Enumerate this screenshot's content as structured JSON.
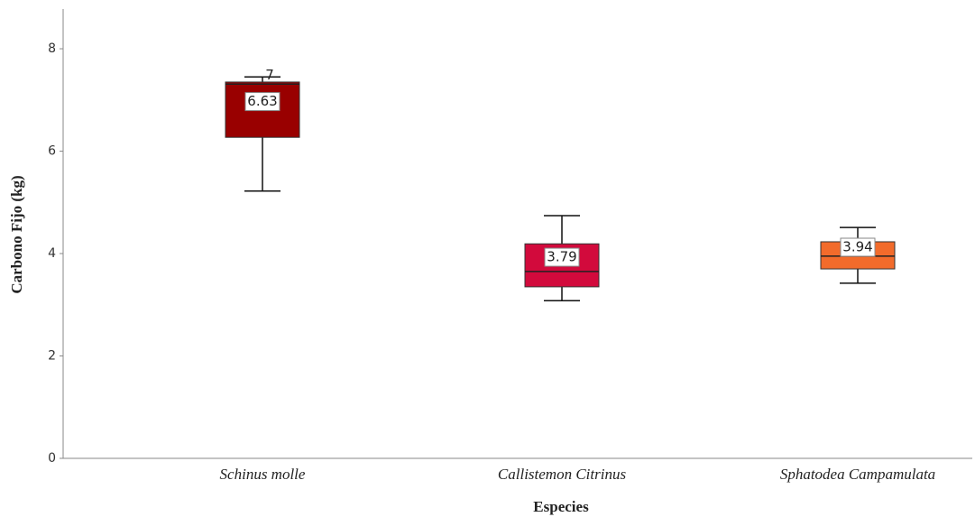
{
  "chart_data": {
    "type": "box",
    "x_label": "Especies",
    "y_label": "Carbono Fijo (kg)",
    "categories": [
      "Schinus molle",
      "Callistemon Citrinus",
      "Sphatodea Campamulata"
    ],
    "colors": [
      "#990000",
      "#d20a3c",
      "#f26b2b"
    ],
    "min": [
      5.22,
      3.08,
      3.42
    ],
    "q1": [
      6.27,
      3.35,
      3.7
    ],
    "median": [
      7.31,
      3.65,
      3.95
    ],
    "q3": [
      7.35,
      4.19,
      4.23
    ],
    "max": [
      7.45,
      4.74,
      4.51
    ],
    "mean": [
      6.63,
      3.79,
      3.94
    ],
    "annotations": [
      "7"
    ],
    "ylim": [
      0,
      8.6
    ],
    "yticks": [
      0,
      2,
      4,
      6,
      8
    ],
    "grid": false
  }
}
